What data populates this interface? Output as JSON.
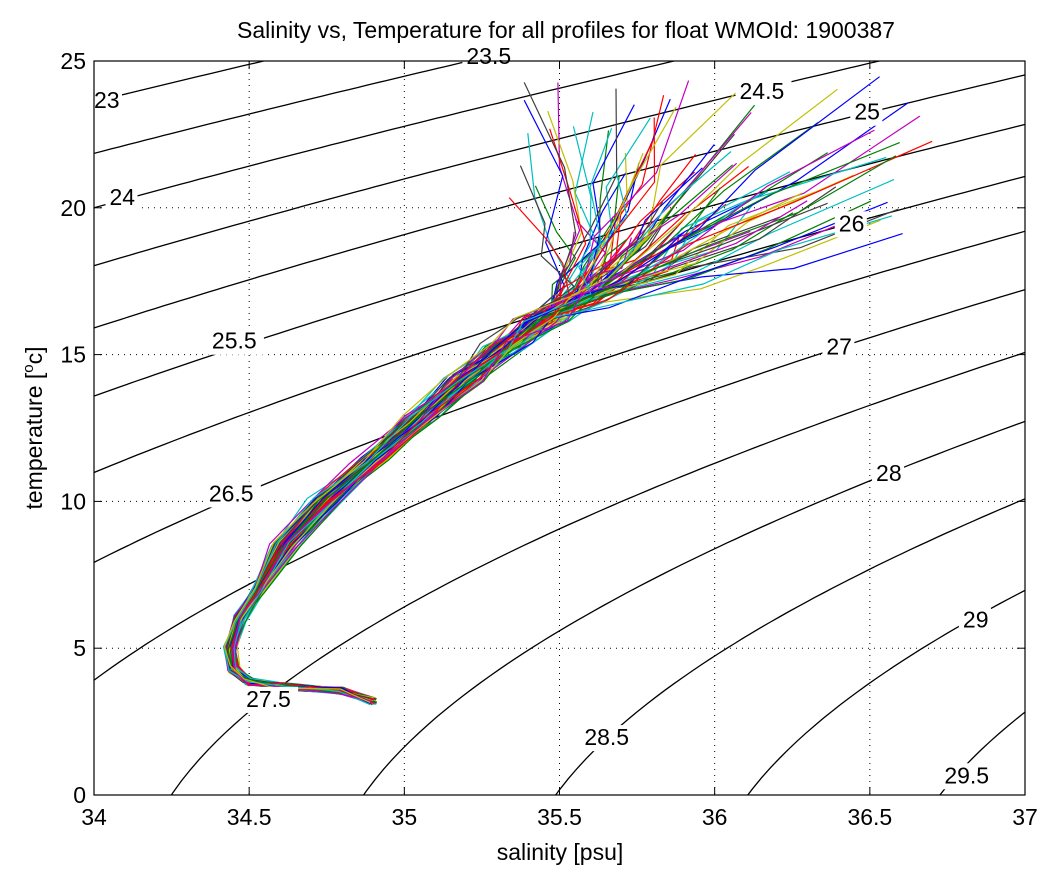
{
  "chart_data": {
    "type": "line",
    "title": "Salinity vs, Temperature for all profiles for float WMOId: 1900387",
    "xlabel": "salinity [psu]",
    "ylabel_main": "temperature [",
    "ylabel_sup": "o",
    "ylabel_tail": "c]",
    "xlim": [
      34,
      37
    ],
    "ylim": [
      0,
      25
    ],
    "xticks": [
      34,
      34.5,
      35,
      35.5,
      36,
      36.5,
      37
    ],
    "xtick_labels": [
      "34",
      "34.5",
      "35",
      "35.5",
      "36",
      "36.5",
      "37"
    ],
    "yticks": [
      0,
      5,
      10,
      15,
      20,
      25
    ],
    "ytick_labels": [
      "0",
      "5",
      "10",
      "15",
      "20",
      "25"
    ],
    "grid": true,
    "density_contours": [
      "23",
      "23.5",
      "24",
      "24.5",
      "25",
      "25.5",
      "26",
      "26.5",
      "27",
      "27.5",
      "28",
      "28.5",
      "29",
      "29.5"
    ],
    "density_label_positions": [
      {
        "text": "23",
        "s": 34.0,
        "t": 23.4
      },
      {
        "text": "23.5",
        "s": 35.2,
        "t": 24.9
      },
      {
        "text": "24",
        "s": 34.05,
        "t": 20.1
      },
      {
        "text": "24.5",
        "s": 36.08,
        "t": 23.7
      },
      {
        "text": "25.5",
        "s": 34.38,
        "t": 15.2
      },
      {
        "text": "25",
        "s": 36.45,
        "t": 23.0
      },
      {
        "text": "26",
        "s": 36.4,
        "t": 19.2
      },
      {
        "text": "26.5",
        "s": 34.37,
        "t": 10.0
      },
      {
        "text": "27",
        "s": 36.36,
        "t": 15.0
      },
      {
        "text": "27.5",
        "s": 34.49,
        "t": 3.0
      },
      {
        "text": "28",
        "s": 36.52,
        "t": 10.7
      },
      {
        "text": "28.5",
        "s": 35.58,
        "t": 1.7
      },
      {
        "text": "29",
        "s": 36.8,
        "t": 5.7
      },
      {
        "text": "29.5",
        "s": 36.74,
        "t": 0.4
      }
    ],
    "profile_colors": [
      "#0000ff",
      "#008000",
      "#ff0000",
      "#00bfbf",
      "#bf00bf",
      "#bfbf00",
      "#404040"
    ],
    "profile_count": 90,
    "mean_profile": {
      "s": [
        34.9,
        34.8,
        34.6,
        34.5,
        34.45,
        34.44,
        34.47,
        34.53,
        34.62,
        34.75,
        34.9,
        35.05,
        35.2,
        35.33,
        35.45,
        35.6,
        35.8,
        36.0,
        36.25
      ],
      "t": [
        3.2,
        3.55,
        3.7,
        3.85,
        4.3,
        5.0,
        6.0,
        7.0,
        8.5,
        10.0,
        11.4,
        12.8,
        14.2,
        15.3,
        16.2,
        17.0,
        18.2,
        19.5,
        21.3
      ]
    }
  }
}
